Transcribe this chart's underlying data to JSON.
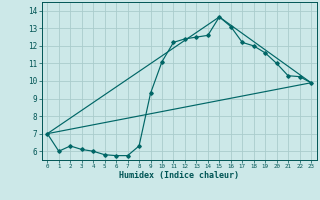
{
  "xlabel": "Humidex (Indice chaleur)",
  "xlim": [
    -0.5,
    23.5
  ],
  "ylim": [
    5.5,
    14.5
  ],
  "xticks": [
    0,
    1,
    2,
    3,
    4,
    5,
    6,
    7,
    8,
    9,
    10,
    11,
    12,
    13,
    14,
    15,
    16,
    17,
    18,
    19,
    20,
    21,
    22,
    23
  ],
  "yticks": [
    6,
    7,
    8,
    9,
    10,
    11,
    12,
    13,
    14
  ],
  "background_color": "#cce8e8",
  "grid_color": "#aacccc",
  "line_color": "#006666",
  "line1_x": [
    0,
    1,
    2,
    3,
    4,
    5,
    6,
    7,
    8,
    9,
    10,
    11,
    12,
    13,
    14,
    15,
    16,
    17,
    18,
    19,
    20,
    21,
    22,
    23
  ],
  "line1_y": [
    7.0,
    6.0,
    6.3,
    6.1,
    6.0,
    5.8,
    5.75,
    5.75,
    6.3,
    9.3,
    11.1,
    12.2,
    12.4,
    12.5,
    12.6,
    13.65,
    13.1,
    12.2,
    12.0,
    11.6,
    11.0,
    10.3,
    10.25,
    9.9
  ],
  "line2_x": [
    0,
    23
  ],
  "line2_y": [
    7.0,
    9.9
  ],
  "line3_x": [
    0,
    15,
    23
  ],
  "line3_y": [
    7.0,
    13.65,
    9.9
  ]
}
